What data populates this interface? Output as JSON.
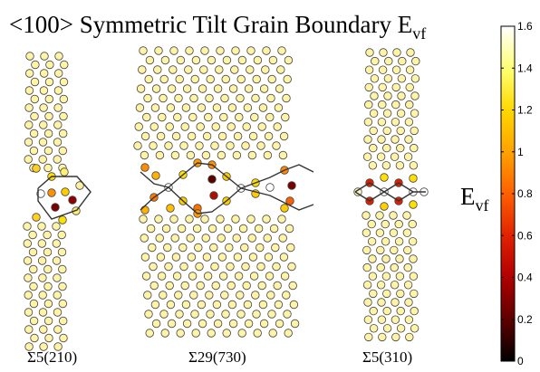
{
  "title": {
    "main": "<100> Symmetric Tilt Grain Boundary E",
    "subscript": "vf"
  },
  "colorbar": {
    "label_main": "E",
    "label_sub": "vf",
    "ticks": [
      "1.6",
      "1.4",
      "1.2",
      "1",
      "0.8",
      "0.6",
      "0.4",
      "0.2",
      "0"
    ],
    "colormap": [
      "#000000",
      "#5a0000",
      "#b00000",
      "#e02000",
      "#ff6000",
      "#ffa000",
      "#ffd800",
      "#ffff70",
      "#ffffff"
    ],
    "range": [
      0,
      1.6
    ]
  },
  "panels": [
    {
      "label": "Σ5(210)"
    },
    {
      "label": "Σ29(730)"
    },
    {
      "label": "Σ5(310)"
    }
  ],
  "colors": {
    "bulk_atom": "#fff3a6",
    "atom_outline": "#444444",
    "boundary_line": "#333333"
  }
}
